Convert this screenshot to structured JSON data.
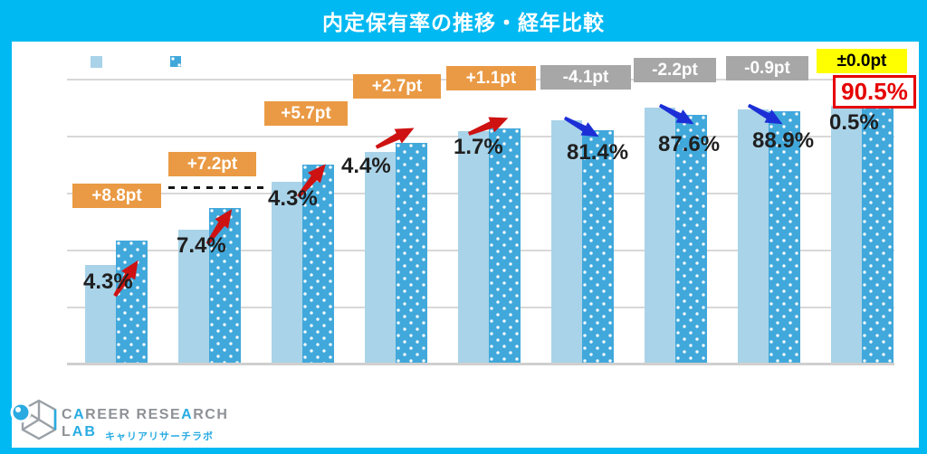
{
  "title": "内定保有率の推移・経年比較",
  "colors": {
    "frame": "#00b9f2",
    "bar_solid": "#a9d3e8",
    "bar_dotted": "#41a8db",
    "badge_positive": "#ea9a44",
    "badge_negative": "#a7a7a7",
    "badge_zero_bg": "#ffff00",
    "highlight_red": "#e60000",
    "arrow_up": "#ce1212",
    "arrow_down": "#1c2fd6",
    "gridline": "#d8d8d8",
    "label_text": "#1f1f1f"
  },
  "legend": {
    "swatches": [
      {
        "name": "solid-series",
        "color": "#a9d3e8",
        "style": "solid"
      },
      {
        "name": "dotted-series",
        "color": "#41a8db",
        "style": "dotted"
      }
    ]
  },
  "chart_data": {
    "type": "bar",
    "title": "内定保有率の推移・経年比較",
    "categories": [
      "",
      "",
      "",
      "",
      "",
      "",
      "",
      "",
      ""
    ],
    "series": [
      {
        "name": "series-solid-left",
        "color": "#a9d3e8",
        "values_estimated": [
          55.5,
          60.2,
          68.6,
          71.7,
          80.6,
          85.5,
          89.8,
          89.8,
          90.5
        ]
      },
      {
        "name": "series-dotted-right",
        "color": "#41a8db",
        "values": [
          64.3,
          67.4,
          74.3,
          74.4,
          81.7,
          81.4,
          87.6,
          88.9,
          90.5
        ]
      }
    ],
    "bar_labels_visible": [
      "4.3%",
      "7.4%",
      "4.3%",
      "4.4%",
      "1.7%",
      "81.4%",
      "87.6%",
      "88.9%",
      "0.5%"
    ],
    "diff_badges": [
      {
        "label": "+8.8pt",
        "type": "positive"
      },
      {
        "label": "+7.2pt",
        "type": "positive"
      },
      {
        "label": "+5.7pt",
        "type": "positive"
      },
      {
        "label": "+2.7pt",
        "type": "positive"
      },
      {
        "label": "+1.1pt",
        "type": "positive"
      },
      {
        "label": "-4.1pt",
        "type": "negative"
      },
      {
        "label": "-2.2pt",
        "type": "negative"
      },
      {
        "label": "-0.9pt",
        "type": "negative"
      },
      {
        "label": "±0.0pt",
        "type": "zero"
      }
    ],
    "trend_arrows": [
      "up",
      "up",
      "up",
      "up",
      "up",
      "down",
      "down",
      "down",
      "none"
    ],
    "highlight_value": "90.5%",
    "ylim_estimated": [
      40,
      100
    ],
    "grid": true,
    "n_gridlines": 6,
    "legend_position": "top-left"
  },
  "logo": {
    "brand_line1": "CAREER RESEARCH",
    "brand_line2": "LAB",
    "brand_sub": "キャリアリサーチラボ"
  }
}
